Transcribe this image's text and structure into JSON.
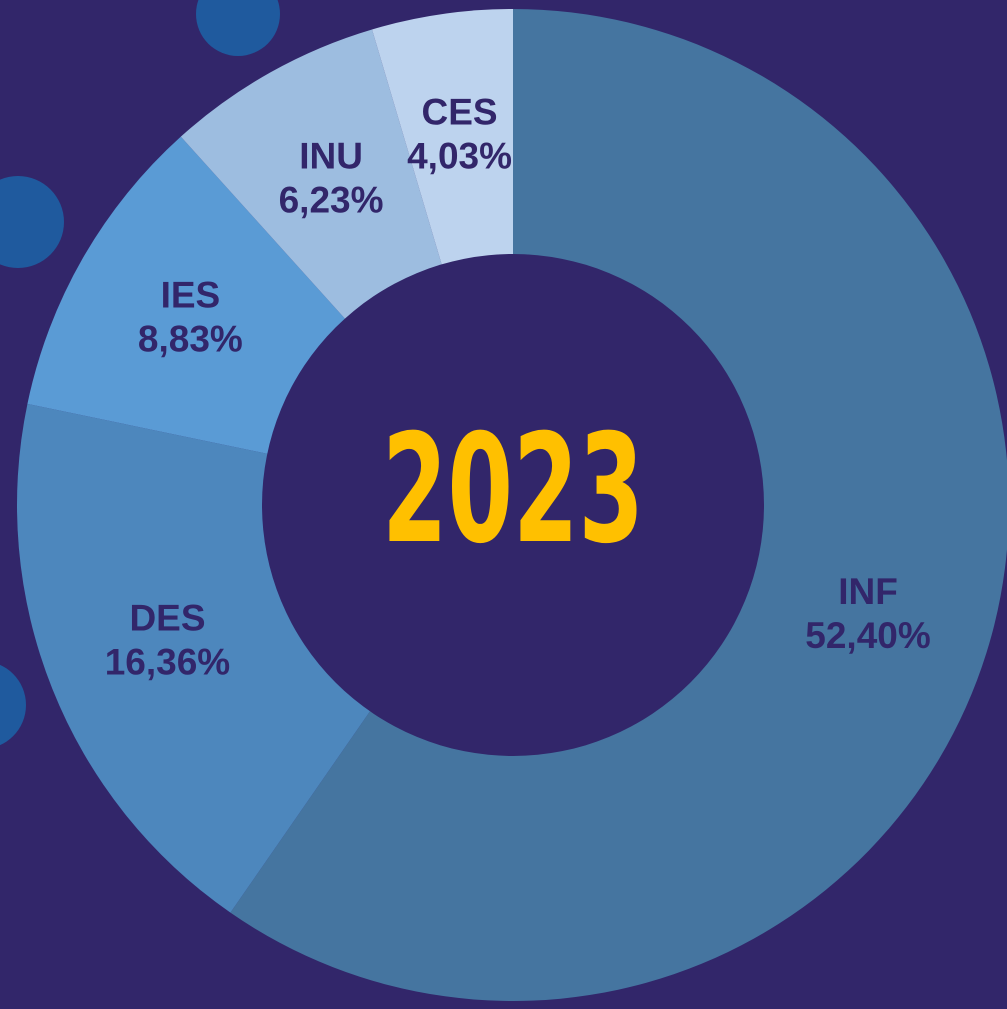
{
  "chart_data": {
    "type": "pie",
    "donut": true,
    "center_label": "2023",
    "categories": [
      "INF",
      "DES",
      "IES",
      "INU",
      "CES"
    ],
    "values": [
      52.4,
      16.36,
      8.83,
      6.23,
      4.03
    ],
    "value_labels": [
      "52,40%",
      "16,36%",
      "8,83%",
      "6,23%",
      "4,03%"
    ],
    "colors": [
      "#4575a0",
      "#4d87bd",
      "#5a9bd5",
      "#9dbde0",
      "#bdd3ee"
    ]
  }
}
